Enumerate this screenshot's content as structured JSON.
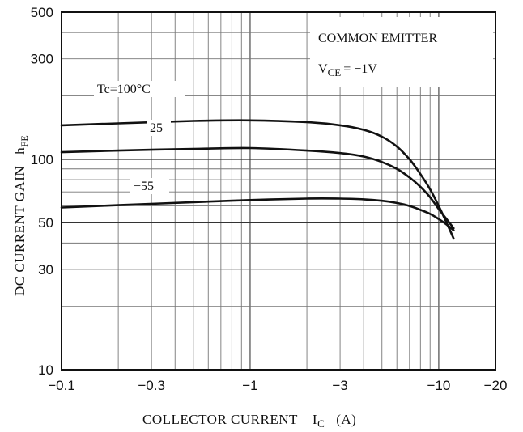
{
  "chart_data": {
    "type": "line",
    "title": "",
    "xlabel": "COLLECTOR CURRENT",
    "xlabel_symbol": "I",
    "xlabel_sub": "C",
    "xlabel_unit": "(A)",
    "ylabel": "DC CURRENT GAIN",
    "ylabel_symbol": "h",
    "ylabel_sub": "FE",
    "xscale": "log",
    "yscale": "log",
    "xlim": [
      -0.1,
      -20
    ],
    "ylim": [
      10,
      500
    ],
    "grid": true,
    "x_ticks": [
      {
        "value": 0.1,
        "label": "−0.1"
      },
      {
        "value": 0.3,
        "label": "−0.3"
      },
      {
        "value": 1,
        "label": "−1"
      },
      {
        "value": 3,
        "label": "−3"
      },
      {
        "value": 10,
        "label": "−10"
      },
      {
        "value": 20,
        "label": "−20"
      }
    ],
    "y_ticks": [
      {
        "value": 10,
        "label": "10"
      },
      {
        "value": 30,
        "label": "30"
      },
      {
        "value": 50,
        "label": "50"
      },
      {
        "value": 100,
        "label": "100"
      },
      {
        "value": 300,
        "label": "300"
      },
      {
        "value": 500,
        "label": "500"
      }
    ],
    "conditions": {
      "line1": "COMMON EMITTER",
      "line2_prefix": "V",
      "line2_sub": "CE",
      "line2_suffix": "= −1V"
    },
    "series": [
      {
        "name": "Tc=100°C",
        "x": [
          0.1,
          0.2,
          0.5,
          1,
          2,
          3,
          4,
          5,
          6,
          7,
          8,
          9,
          10,
          11,
          12
        ],
        "y": [
          145,
          148,
          152,
          153,
          150,
          145,
          138,
          128,
          115,
          100,
          85,
          72,
          60,
          50,
          42
        ]
      },
      {
        "name": "25",
        "x": [
          0.1,
          0.2,
          0.5,
          1,
          2,
          3,
          4,
          5,
          6,
          7,
          8,
          9,
          10,
          11,
          12
        ],
        "y": [
          108,
          110,
          112,
          113,
          110,
          107,
          103,
          97,
          90,
          82,
          74,
          66,
          58,
          52,
          47
        ]
      },
      {
        "name": "−55",
        "x": [
          0.1,
          0.2,
          0.5,
          1,
          2,
          3,
          4,
          5,
          6,
          7,
          8,
          9,
          10,
          11,
          12
        ],
        "y": [
          59,
          60.5,
          62.5,
          64,
          65,
          65,
          64.5,
          63.5,
          62,
          60,
          57.5,
          55,
          52,
          49,
          46
        ]
      }
    ]
  }
}
